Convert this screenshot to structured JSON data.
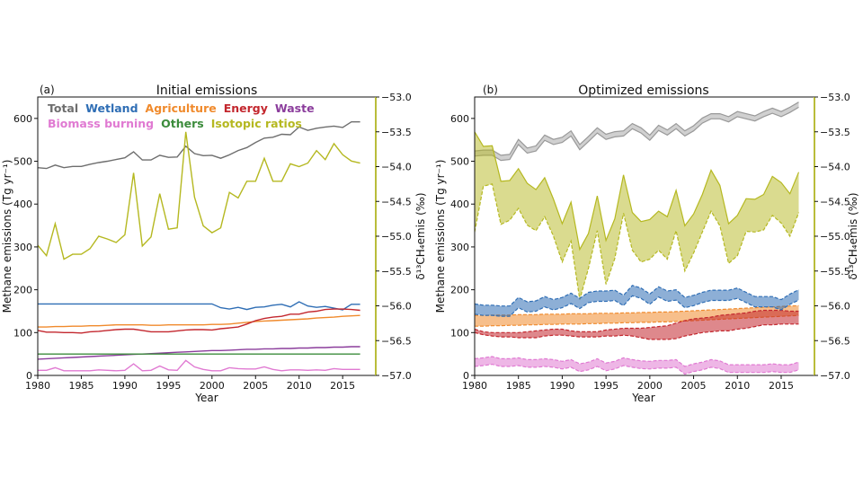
{
  "colors": {
    "total": "#6e6e6e",
    "total_band": "#a9a9a9",
    "wetland": "#2f6eb5",
    "agriculture": "#f08a2c",
    "energy": "#c3272e",
    "waste": "#8b3d9c",
    "biomass": "#e07ad2",
    "others": "#3c8c3c",
    "isotopic": "#b5b820",
    "isotopic_axis": "#b9bd3a"
  },
  "chart_data": [
    {
      "type": "line",
      "panel_label": "(a)",
      "title": "Initial emissions",
      "xlabel": "Year",
      "ylabel": "Methane emissions (Tg yr⁻¹)",
      "y2label": "δ¹³CH₄emis (‰)",
      "xlim": [
        1980,
        2018.8
      ],
      "ylim": [
        0,
        650
      ],
      "y2lim": [
        -57.0,
        -53.0
      ],
      "xticks": [
        1980,
        1985,
        1990,
        1995,
        2000,
        2005,
        2010,
        2015
      ],
      "yticks": [
        0,
        100,
        200,
        300,
        400,
        500,
        600
      ],
      "y2ticks": [
        "-57.0",
        "-56.5",
        "-56.0",
        "-55.5",
        "-55.0",
        "-54.5",
        "-54.0",
        "-53.5",
        "-53.0"
      ],
      "grid": false,
      "legend": {
        "placement": "top-left",
        "rows": [
          [
            {
              "label": "Total",
              "key": "total"
            },
            {
              "label": "Wetland",
              "key": "wetland"
            },
            {
              "label": "Agriculture",
              "key": "agriculture"
            },
            {
              "label": "Energy",
              "key": "energy"
            },
            {
              "label": "Waste",
              "key": "waste"
            }
          ],
          [
            {
              "label": "Biomass burning",
              "key": "biomass"
            },
            {
              "label": "Others",
              "key": "others"
            },
            {
              "label": "Isotopic ratios",
              "key": "isotopic"
            }
          ]
        ]
      },
      "x": [
        1980,
        1981,
        1982,
        1983,
        1984,
        1985,
        1986,
        1987,
        1988,
        1989,
        1990,
        1991,
        1992,
        1993,
        1994,
        1995,
        1996,
        1997,
        1998,
        1999,
        2000,
        2001,
        2002,
        2003,
        2004,
        2005,
        2006,
        2007,
        2008,
        2009,
        2010,
        2011,
        2012,
        2013,
        2014,
        2015,
        2016,
        2017
      ],
      "series": [
        {
          "name": "Total",
          "key": "total",
          "axis": "left",
          "values": [
            485,
            483,
            491,
            485,
            488,
            488,
            493,
            497,
            500,
            504,
            508,
            522,
            503,
            503,
            514,
            509,
            510,
            535,
            518,
            513,
            514,
            507,
            515,
            525,
            532,
            544,
            554,
            556,
            563,
            562,
            580,
            572,
            577,
            580,
            582,
            579,
            592,
            592
          ]
        },
        {
          "name": "Wetland",
          "key": "wetland",
          "axis": "left",
          "values": [
            167,
            167,
            167,
            167,
            167,
            167,
            167,
            167,
            167,
            167,
            167,
            167,
            167,
            167,
            167,
            167,
            167,
            167,
            167,
            167,
            167,
            158,
            155,
            159,
            154,
            159,
            160,
            164,
            166,
            160,
            172,
            162,
            159,
            161,
            157,
            153,
            166,
            166
          ]
        },
        {
          "name": "Agriculture",
          "key": "agriculture",
          "axis": "left",
          "values": [
            113,
            113,
            114,
            114,
            115,
            115,
            116,
            116,
            117,
            118,
            118,
            118,
            118,
            117,
            117,
            118,
            118,
            118,
            118,
            118,
            119,
            119,
            120,
            122,
            124,
            126,
            127,
            128,
            129,
            130,
            131,
            132,
            134,
            135,
            136,
            138,
            139,
            140
          ]
        },
        {
          "name": "Energy",
          "key": "energy",
          "axis": "left",
          "values": [
            105,
            101,
            101,
            100,
            100,
            99,
            102,
            103,
            105,
            107,
            108,
            108,
            105,
            102,
            102,
            102,
            104,
            106,
            107,
            107,
            106,
            109,
            111,
            113,
            120,
            128,
            133,
            136,
            138,
            143,
            143,
            148,
            150,
            154,
            155,
            155,
            154,
            152
          ]
        },
        {
          "name": "Waste",
          "key": "waste",
          "axis": "left",
          "values": [
            38,
            39,
            40,
            41,
            42,
            43,
            44,
            45,
            46,
            47,
            48,
            49,
            50,
            51,
            52,
            53,
            54,
            55,
            56,
            57,
            58,
            58,
            59,
            60,
            61,
            61,
            62,
            62,
            63,
            63,
            64,
            64,
            65,
            65,
            66,
            66,
            67,
            67
          ]
        },
        {
          "name": "Others",
          "key": "others",
          "axis": "left",
          "values": [
            50,
            50,
            50,
            50,
            50,
            50,
            50,
            50,
            50,
            50,
            50,
            50,
            50,
            50,
            50,
            50,
            50,
            50,
            50,
            50,
            50,
            50,
            50,
            50,
            50,
            50,
            50,
            50,
            50,
            50,
            50,
            50,
            50,
            50,
            50,
            50,
            50,
            50
          ]
        },
        {
          "name": "Biomass burning",
          "key": "biomass",
          "axis": "left",
          "values": [
            12,
            12,
            18,
            11,
            11,
            11,
            11,
            13,
            12,
            11,
            12,
            27,
            11,
            12,
            22,
            13,
            12,
            35,
            20,
            14,
            11,
            11,
            18,
            16,
            15,
            15,
            20,
            14,
            11,
            13,
            13,
            12,
            13,
            12,
            16,
            14,
            14,
            14
          ]
        },
        {
          "name": "Isotopic ratios",
          "key": "isotopic",
          "axis": "right",
          "values": [
            -55.13,
            -55.28,
            -54.82,
            -55.33,
            -55.26,
            -55.26,
            -55.18,
            -55.0,
            -55.04,
            -55.09,
            -54.98,
            -54.09,
            -55.14,
            -55.01,
            -54.39,
            -54.9,
            -54.88,
            -53.5,
            -54.44,
            -54.85,
            -54.95,
            -54.88,
            -54.37,
            -54.45,
            -54.21,
            -54.21,
            -53.88,
            -54.21,
            -54.21,
            -53.96,
            -54.0,
            -53.95,
            -53.77,
            -53.9,
            -53.67,
            -53.83,
            -53.92,
            -53.95
          ]
        }
      ]
    },
    {
      "type": "area",
      "panel_label": "(b)",
      "title": "Optimized emissions",
      "xlabel": "Year",
      "ylabel": "Methane emissions (Tg yr⁻¹)",
      "y2label": "δ¹³CH₄emis (‰)",
      "xlim": [
        1980,
        2018.8
      ],
      "ylim": [
        0,
        650
      ],
      "y2lim": [
        -57.0,
        -53.0
      ],
      "xticks": [
        1980,
        1985,
        1990,
        1995,
        2000,
        2005,
        2010,
        2015
      ],
      "yticks": [
        0,
        100,
        200,
        300,
        400,
        500,
        600
      ],
      "y2ticks": [
        "-57.0",
        "-56.5",
        "-56.0",
        "-55.5",
        "-55.0",
        "-54.5",
        "-54.0",
        "-53.5",
        "-53.0"
      ],
      "grid": false,
      "x": [
        1980,
        1981,
        1982,
        1983,
        1984,
        1985,
        1986,
        1987,
        1988,
        1989,
        1990,
        1991,
        1992,
        1993,
        1994,
        1995,
        1996,
        1997,
        1998,
        1999,
        2000,
        2001,
        2002,
        2003,
        2004,
        2005,
        2006,
        2007,
        2008,
        2009,
        2010,
        2011,
        2012,
        2013,
        2014,
        2015,
        2016,
        2017
      ],
      "bands": [
        {
          "key": "total",
          "axis": "left",
          "lower": [
            512,
            514,
            514,
            502,
            504,
            539,
            519,
            524,
            549,
            539,
            544,
            559,
            527,
            546,
            566,
            551,
            557,
            559,
            576,
            566,
            549,
            572,
            561,
            576,
            559,
            571,
            589,
            599,
            599,
            592,
            604,
            599,
            594,
            604,
            612,
            604,
            614,
            626
          ],
          "upper": [
            524,
            526,
            526,
            514,
            516,
            551,
            531,
            536,
            561,
            551,
            556,
            571,
            539,
            558,
            578,
            563,
            569,
            571,
            588,
            578,
            561,
            584,
            573,
            588,
            571,
            583,
            601,
            611,
            611,
            604,
            616,
            611,
            606,
            616,
            624,
            616,
            626,
            638
          ]
        },
        {
          "key": "isotopic",
          "axis": "right",
          "lower": [
            -54.94,
            -54.28,
            -54.25,
            -54.83,
            -54.77,
            -54.6,
            -54.84,
            -54.92,
            -54.72,
            -55.0,
            -55.37,
            -55.07,
            -55.91,
            -55.46,
            -54.92,
            -55.69,
            -55.32,
            -54.67,
            -55.2,
            -55.37,
            -55.33,
            -55.2,
            -55.33,
            -54.92,
            -55.5,
            -55.24,
            -54.94,
            -54.64,
            -54.85,
            -55.39,
            -55.28,
            -54.93,
            -54.94,
            -54.91,
            -54.7,
            -54.81,
            -55.0,
            -54.66
          ],
          "upper": [
            -53.5,
            -53.71,
            -53.7,
            -54.21,
            -54.2,
            -54.03,
            -54.24,
            -54.33,
            -54.16,
            -54.47,
            -54.82,
            -54.51,
            -55.19,
            -54.96,
            -54.42,
            -55.06,
            -54.75,
            -54.12,
            -54.66,
            -54.79,
            -54.76,
            -54.64,
            -54.72,
            -54.34,
            -54.85,
            -54.68,
            -54.4,
            -54.05,
            -54.27,
            -54.82,
            -54.7,
            -54.46,
            -54.47,
            -54.4,
            -54.14,
            -54.23,
            -54.39,
            -54.08
          ]
        },
        {
          "key": "agriculture",
          "axis": "left",
          "lower": [
            115,
            115,
            116,
            116,
            117,
            117,
            118,
            118,
            119,
            119,
            120,
            120,
            120,
            121,
            121,
            122,
            122,
            123,
            123,
            124,
            124,
            125,
            125,
            126,
            127,
            128,
            129,
            130,
            131,
            132,
            133,
            134,
            135,
            136,
            137,
            138,
            139,
            140
          ],
          "upper": [
            140,
            140,
            141,
            141,
            141,
            142,
            142,
            142,
            143,
            143,
            143,
            144,
            144,
            144,
            145,
            145,
            145,
            146,
            146,
            147,
            147,
            148,
            148,
            149,
            150,
            151,
            152,
            153,
            154,
            155,
            156,
            157,
            158,
            159,
            160,
            161,
            162,
            163
          ]
        },
        {
          "key": "energy",
          "axis": "left",
          "lower": [
            100,
            95,
            92,
            90,
            90,
            88,
            88,
            88,
            92,
            94,
            94,
            92,
            90,
            90,
            90,
            92,
            92,
            94,
            92,
            88,
            84,
            84,
            84,
            86,
            92,
            96,
            100,
            102,
            104,
            104,
            108,
            110,
            114,
            118,
            118,
            120,
            120,
            120
          ],
          "upper": [
            108,
            102,
            100,
            100,
            100,
            100,
            102,
            104,
            106,
            108,
            108,
            104,
            102,
            102,
            102,
            106,
            108,
            110,
            110,
            110,
            112,
            114,
            116,
            122,
            128,
            132,
            134,
            136,
            140,
            142,
            144,
            146,
            150,
            152,
            152,
            152,
            150,
            150
          ]
        },
        {
          "key": "wetland",
          "axis": "left",
          "lower": [
            143,
            140,
            140,
            138,
            138,
            158,
            148,
            150,
            160,
            153,
            158,
            168,
            156,
            170,
            173,
            173,
            175,
            163,
            186,
            180,
            166,
            183,
            173,
            176,
            158,
            163,
            170,
            175,
            175,
            175,
            180,
            170,
            160,
            160,
            160,
            153,
            166,
            176
          ],
          "upper": [
            167,
            164,
            164,
            162,
            162,
            182,
            172,
            174,
            184,
            177,
            182,
            192,
            180,
            194,
            197,
            197,
            199,
            187,
            210,
            204,
            190,
            207,
            197,
            200,
            182,
            187,
            194,
            199,
            199,
            199,
            204,
            194,
            184,
            184,
            184,
            177,
            190,
            200
          ]
        },
        {
          "key": "biomass",
          "axis": "left",
          "lower": [
            21,
            23,
            26,
            21,
            21,
            23,
            19,
            19,
            21,
            19,
            15,
            19,
            9,
            13,
            21,
            11,
            15,
            23,
            19,
            16,
            15,
            17,
            17,
            19,
            3,
            9,
            13,
            19,
            16,
            7,
            7,
            7,
            7,
            7,
            9,
            7,
            7,
            13
          ],
          "upper": [
            39,
            41,
            44,
            39,
            39,
            41,
            37,
            37,
            39,
            37,
            33,
            37,
            27,
            31,
            39,
            29,
            33,
            41,
            37,
            34,
            33,
            35,
            35,
            37,
            21,
            27,
            31,
            37,
            34,
            25,
            25,
            25,
            25,
            25,
            27,
            25,
            25,
            31
          ]
        }
      ]
    }
  ]
}
